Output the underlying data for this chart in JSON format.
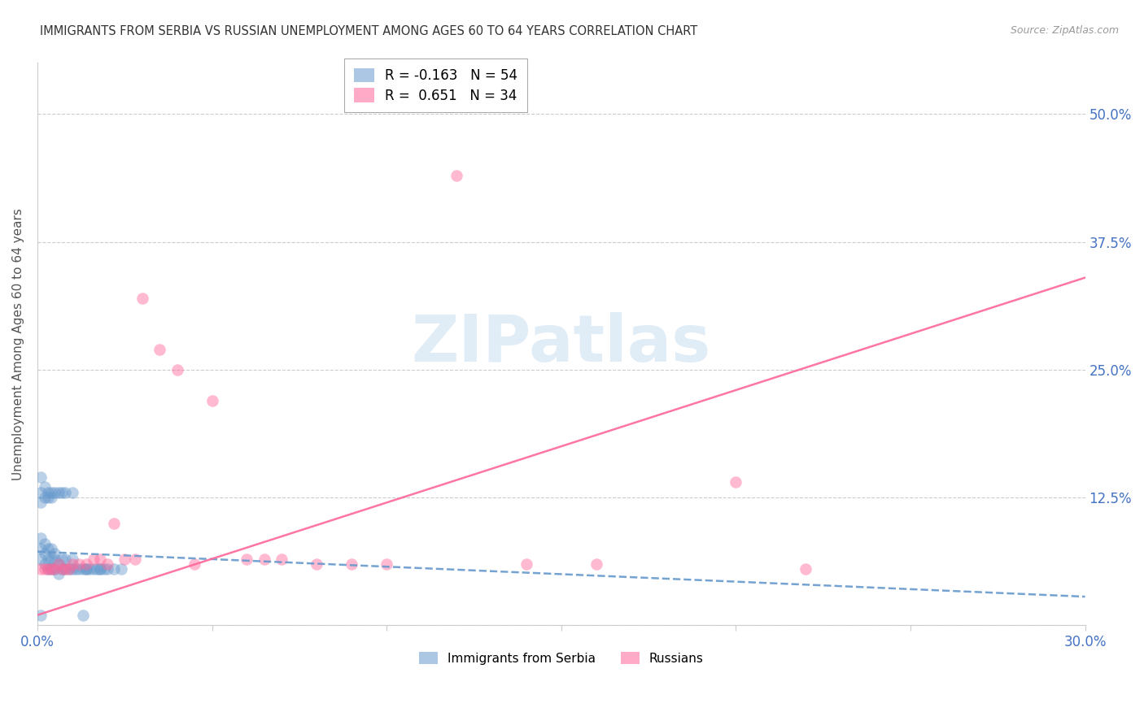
{
  "title": "IMMIGRANTS FROM SERBIA VS RUSSIAN UNEMPLOYMENT AMONG AGES 60 TO 64 YEARS CORRELATION CHART",
  "source": "Source: ZipAtlas.com",
  "ylabel": "Unemployment Among Ages 60 to 64 years",
  "x_min": 0.0,
  "x_max": 0.3,
  "y_min": 0.0,
  "y_max": 0.55,
  "yticks": [
    0.0,
    0.125,
    0.25,
    0.375,
    0.5
  ],
  "ytick_labels": [
    "",
    "12.5%",
    "25.0%",
    "37.5%",
    "50.0%"
  ],
  "xticks": [
    0.0,
    0.05,
    0.1,
    0.15,
    0.2,
    0.25,
    0.3
  ],
  "xtick_labels": [
    "0.0%",
    "",
    "",
    "",
    "",
    "",
    "30.0%"
  ],
  "serbia_color": "#6699CC",
  "russia_color": "#FF6699",
  "serbia_R": -0.163,
  "serbia_N": 54,
  "russia_R": 0.651,
  "russia_N": 34,
  "serbia_x": [
    0.001,
    0.001,
    0.001,
    0.002,
    0.002,
    0.002,
    0.003,
    0.003,
    0.003,
    0.004,
    0.004,
    0.004,
    0.005,
    0.005,
    0.005,
    0.006,
    0.006,
    0.007,
    0.007,
    0.008,
    0.008,
    0.009,
    0.01,
    0.01,
    0.011,
    0.012,
    0.013,
    0.014,
    0.015,
    0.016,
    0.017,
    0.018,
    0.019,
    0.02,
    0.022,
    0.024,
    0.001,
    0.001,
    0.001,
    0.002,
    0.002,
    0.003,
    0.003,
    0.004,
    0.004,
    0.005,
    0.006,
    0.007,
    0.008,
    0.01,
    0.014,
    0.018,
    0.001,
    0.013
  ],
  "serbia_y": [
    0.065,
    0.075,
    0.085,
    0.06,
    0.07,
    0.08,
    0.055,
    0.065,
    0.075,
    0.055,
    0.065,
    0.075,
    0.055,
    0.065,
    0.07,
    0.05,
    0.06,
    0.055,
    0.065,
    0.055,
    0.065,
    0.055,
    0.055,
    0.065,
    0.055,
    0.055,
    0.055,
    0.055,
    0.055,
    0.055,
    0.055,
    0.055,
    0.055,
    0.055,
    0.055,
    0.055,
    0.13,
    0.145,
    0.12,
    0.125,
    0.135,
    0.125,
    0.13,
    0.13,
    0.125,
    0.13,
    0.13,
    0.13,
    0.13,
    0.13,
    0.055,
    0.055,
    0.01,
    0.01
  ],
  "russia_x": [
    0.001,
    0.002,
    0.003,
    0.004,
    0.005,
    0.006,
    0.007,
    0.008,
    0.009,
    0.01,
    0.012,
    0.014,
    0.016,
    0.018,
    0.02,
    0.022,
    0.025,
    0.028,
    0.03,
    0.035,
    0.04,
    0.045,
    0.05,
    0.06,
    0.065,
    0.07,
    0.08,
    0.09,
    0.1,
    0.12,
    0.14,
    0.16,
    0.2,
    0.22
  ],
  "russia_y": [
    0.055,
    0.055,
    0.055,
    0.055,
    0.055,
    0.06,
    0.055,
    0.055,
    0.055,
    0.06,
    0.06,
    0.06,
    0.065,
    0.065,
    0.06,
    0.1,
    0.065,
    0.065,
    0.32,
    0.27,
    0.25,
    0.06,
    0.22,
    0.065,
    0.065,
    0.065,
    0.06,
    0.06,
    0.06,
    0.44,
    0.06,
    0.06,
    0.14,
    0.055
  ],
  "serbia_line_x": [
    0.0,
    0.3
  ],
  "serbia_line_y": [
    0.072,
    0.028
  ],
  "russia_line_x": [
    0.0,
    0.3
  ],
  "russia_line_y": [
    0.01,
    0.34
  ],
  "watermark_text": "ZIPatlas",
  "watermark_color": "#c8ddf0",
  "background_color": "#ffffff",
  "title_color": "#333333",
  "tick_label_color": "#4472C4",
  "grid_color": "#cccccc",
  "ylabel_color": "#555555"
}
